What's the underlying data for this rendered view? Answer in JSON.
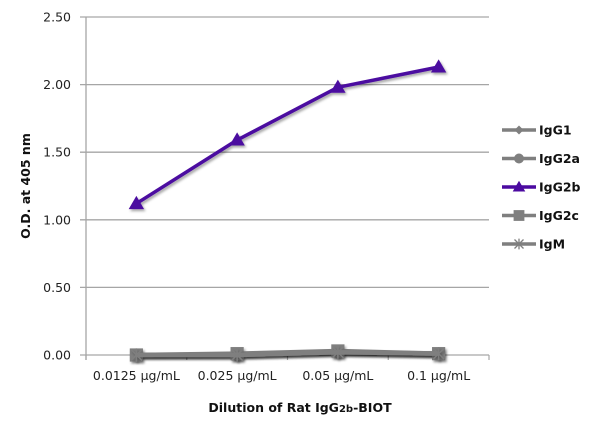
{
  "chart_data": {
    "type": "line",
    "title": "",
    "xlabel": "Dilution of Rat IgG2b-BIOT",
    "xlabel_parts": {
      "pre": "Dilution of Rat IgG",
      "sub": "2b",
      "post": "-BIOT"
    },
    "ylabel": "O.D. at 405 nm",
    "ylim": [
      0,
      2.5
    ],
    "yticks": [
      "0.00",
      "0.50",
      "1.00",
      "1.50",
      "2.00",
      "2.50"
    ],
    "ytick_values": [
      0,
      0.5,
      1.0,
      1.5,
      2.0,
      2.5
    ],
    "grid": true,
    "legend_position": "right",
    "categories": [
      "0.0125 µg/mL",
      "0.025 µg/mL",
      "0.05 µg/mL",
      "0.1 µg/mL"
    ],
    "series": [
      {
        "name": "IgG1",
        "color": "#7f7f7f",
        "marker": "diamond",
        "values": [
          0.0,
          0.0,
          0.02,
          0.01
        ]
      },
      {
        "name": "IgG2a",
        "color": "#7f7f7f",
        "marker": "circle",
        "values": [
          0.0,
          0.0,
          0.02,
          0.01
        ]
      },
      {
        "name": "IgG2b",
        "color": "#4b0aa0",
        "marker": "triangle",
        "values": [
          1.12,
          1.59,
          1.98,
          2.13
        ]
      },
      {
        "name": "IgG2c",
        "color": "#7f7f7f",
        "marker": "square",
        "values": [
          0.0,
          0.01,
          0.03,
          0.01
        ]
      },
      {
        "name": "IgM",
        "color": "#7f7f7f",
        "marker": "star",
        "values": [
          0.0,
          0.0,
          0.02,
          0.01
        ]
      }
    ]
  },
  "colors": {
    "gridline": "#a6a6a6",
    "axis": "#a6a6a6",
    "highlight_series": "#4b0aa0",
    "grey_series": "#7f7f7f"
  }
}
